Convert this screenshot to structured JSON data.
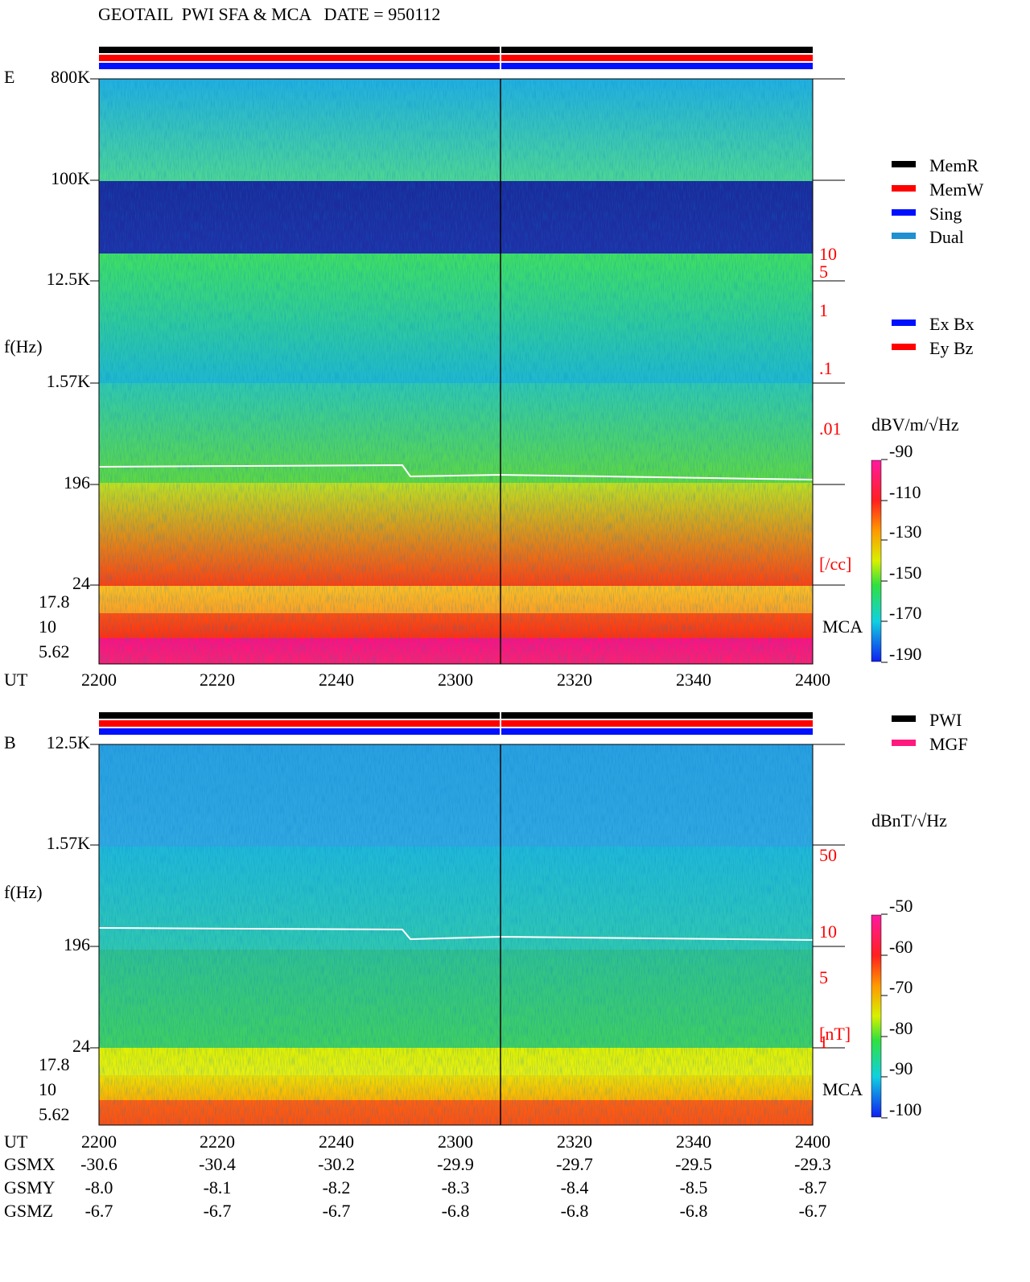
{
  "header": {
    "title": "GEOTAIL  PWI SFA & MCA   DATE = 950112"
  },
  "panels": [
    {
      "label": "E",
      "freq_labels": [
        "800K",
        "100K",
        "12.5K",
        "1.57K",
        "196",
        "24"
      ],
      "mca_labels": [
        "17.8",
        "10",
        "5.62"
      ],
      "axis_label": "f(Hz)",
      "right_labels": [
        "10",
        "5",
        "1",
        ".1",
        ".01",
        "[/cc]"
      ],
      "mca": "MCA",
      "time_label": "UT",
      "times": [
        "2200",
        "2220",
        "2240",
        "2300",
        "2320",
        "2340",
        "2400"
      ],
      "colorbar": {
        "unit": "dBV/m/√Hz",
        "ticks": [
          "-90",
          "-110",
          "-130",
          "-150",
          "-170",
          "-190"
        ]
      }
    },
    {
      "label": "B",
      "freq_labels": [
        "12.5K",
        "1.57K",
        "196",
        "24"
      ],
      "mca_labels": [
        "17.8",
        "10",
        "5.62"
      ],
      "axis_label": "f(Hz)",
      "right_labels": [
        "50",
        "10",
        "5",
        "1",
        "[nT]"
      ],
      "mca": "MCA",
      "time_label": "UT",
      "times": [
        "2200",
        "2220",
        "2240",
        "2300",
        "2320",
        "2340",
        "2400"
      ],
      "colorbar": {
        "unit": "dBnT/√Hz",
        "ticks": [
          "-50",
          "-60",
          "-70",
          "-80",
          "-90",
          "-100"
        ]
      }
    }
  ],
  "legend": {
    "memory": [
      "MemR",
      "MemW",
      "Sing",
      "Dual"
    ],
    "components": [
      "Ex Bx",
      "Ey Bz"
    ],
    "instruments": [
      "PWI",
      "MGF"
    ]
  },
  "orbit": {
    "rows": [
      {
        "name": "GSMX",
        "values": [
          "-30.6",
          "-30.4",
          "-30.2",
          "-29.9",
          "-29.7",
          "-29.5",
          "-29.3"
        ]
      },
      {
        "name": "GSMY",
        "values": [
          "-8.0",
          "-8.1",
          "-8.2",
          "-8.3",
          "-8.4",
          "-8.5",
          "-8.7"
        ]
      },
      {
        "name": "GSMZ",
        "values": [
          "-6.7",
          "-6.7",
          "-6.7",
          "-6.8",
          "-6.8",
          "-6.8",
          "-6.7"
        ]
      }
    ]
  }
}
